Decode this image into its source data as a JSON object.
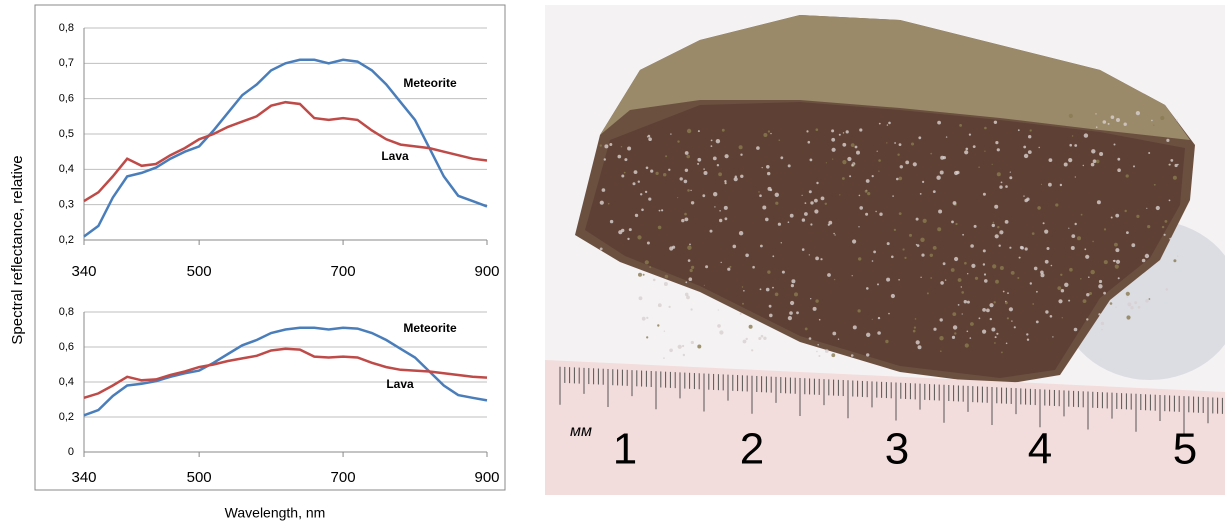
{
  "y_label": "Spectral reflectance, relative",
  "x_label": "Wavelength, nm",
  "chart_data": [
    {
      "type": "line",
      "x": [
        340,
        360,
        380,
        400,
        420,
        440,
        460,
        480,
        500,
        520,
        540,
        560,
        580,
        600,
        620,
        640,
        660,
        680,
        700,
        720,
        740,
        760,
        780,
        800,
        820,
        840,
        860,
        880,
        900
      ],
      "series": [
        {
          "name": "Meteorite",
          "color": "#4a7ebb",
          "values": [
            0.21,
            0.24,
            0.32,
            0.38,
            0.39,
            0.405,
            0.43,
            0.45,
            0.465,
            0.51,
            0.56,
            0.61,
            0.64,
            0.68,
            0.7,
            0.71,
            0.71,
            0.7,
            0.71,
            0.705,
            0.68,
            0.64,
            0.59,
            0.54,
            0.46,
            0.38,
            0.325,
            0.31,
            0.295
          ]
        },
        {
          "name": "Lava",
          "color": "#be4b48",
          "values": [
            0.31,
            0.335,
            0.38,
            0.43,
            0.41,
            0.415,
            0.44,
            0.46,
            0.485,
            0.5,
            0.52,
            0.535,
            0.55,
            0.58,
            0.59,
            0.585,
            0.545,
            0.54,
            0.545,
            0.54,
            0.51,
            0.485,
            0.47,
            0.465,
            0.46,
            0.45,
            0.44,
            0.43,
            0.425
          ]
        }
      ],
      "xlim": [
        340,
        900
      ],
      "xticks": [
        340,
        500,
        700,
        900
      ],
      "ylim": [
        0.2,
        0.8
      ],
      "yticks": [
        {
          "value": 0.2,
          "label": "0,2"
        },
        {
          "value": 0.3,
          "label": "0,3"
        },
        {
          "value": 0.4,
          "label": "0,4"
        },
        {
          "value": 0.5,
          "label": "0,5"
        },
        {
          "value": 0.6,
          "label": "0,6"
        },
        {
          "value": 0.7,
          "label": "0,7"
        },
        {
          "value": 0.8,
          "label": "0,8"
        }
      ],
      "grid": true
    },
    {
      "type": "line",
      "x": [
        340,
        360,
        380,
        400,
        420,
        440,
        460,
        480,
        500,
        520,
        540,
        560,
        580,
        600,
        620,
        640,
        660,
        680,
        700,
        720,
        740,
        760,
        780,
        800,
        820,
        840,
        860,
        880,
        900
      ],
      "series": [
        {
          "name": "Meteorite",
          "color": "#4a7ebb",
          "values": [
            0.21,
            0.24,
            0.32,
            0.38,
            0.39,
            0.405,
            0.43,
            0.45,
            0.465,
            0.51,
            0.56,
            0.61,
            0.64,
            0.68,
            0.7,
            0.71,
            0.71,
            0.7,
            0.71,
            0.705,
            0.68,
            0.64,
            0.59,
            0.54,
            0.46,
            0.38,
            0.325,
            0.31,
            0.295
          ]
        },
        {
          "name": "Lava",
          "color": "#be4b48",
          "values": [
            0.31,
            0.335,
            0.38,
            0.43,
            0.41,
            0.415,
            0.44,
            0.46,
            0.485,
            0.5,
            0.52,
            0.535,
            0.55,
            0.58,
            0.59,
            0.585,
            0.545,
            0.54,
            0.545,
            0.54,
            0.51,
            0.485,
            0.47,
            0.465,
            0.46,
            0.45,
            0.44,
            0.43,
            0.425
          ]
        }
      ],
      "xlim": [
        340,
        900
      ],
      "xticks": [
        340,
        500,
        700,
        900
      ],
      "ylim": [
        0,
        0.8
      ],
      "yticks": [
        0,
        {
          "value": 0.2,
          "label": "0,2"
        },
        {
          "value": 0.4,
          "label": "0,4"
        },
        {
          "value": 0.6,
          "label": "0,6"
        },
        {
          "value": 0.8,
          "label": "0,8"
        }
      ],
      "grid": true
    }
  ],
  "photo": {
    "ruler_unit": "мм",
    "ruler_labels": [
      "1",
      "2",
      "3",
      "4",
      "5"
    ]
  }
}
